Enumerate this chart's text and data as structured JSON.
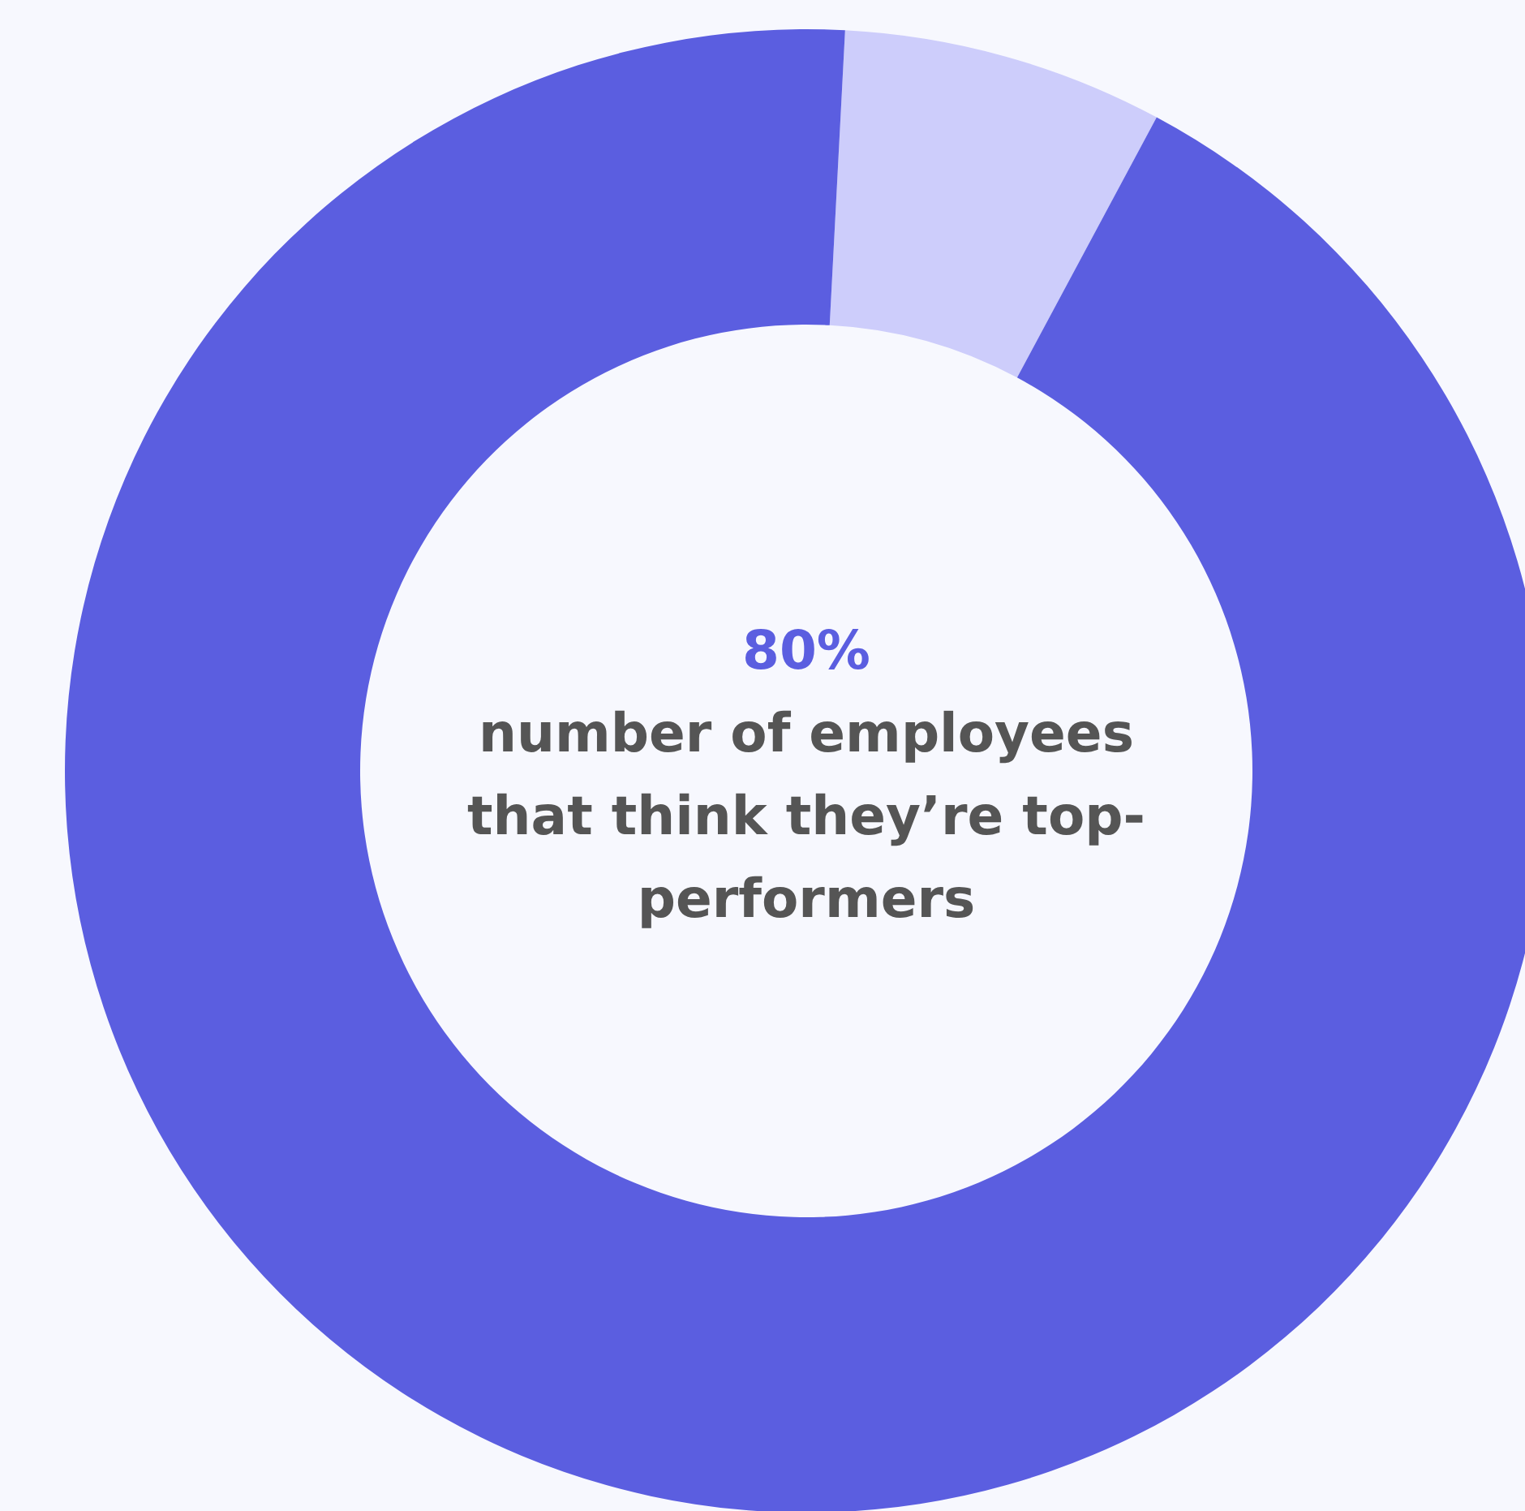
{
  "chart_data": {
    "type": "donut",
    "categories": [
      null,
      null
    ],
    "values": [
      7,
      93
    ],
    "colors": [
      "#cdcdfb",
      "#5b5ee0"
    ],
    "annotations": [
      "80%",
      "number of employees that think they’re top-performers"
    ]
  }
}
